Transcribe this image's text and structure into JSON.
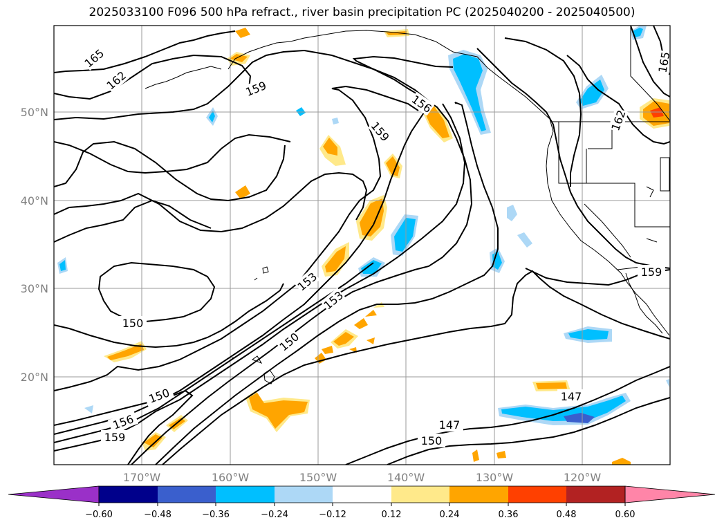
{
  "title": "2025033100 F096 500 hPa refract., river basin precipitation PC (2025040200 - 2025040500)",
  "map": {
    "lat_labels": [
      "50°N",
      "40°N",
      "30°N",
      "20°N"
    ],
    "lon_labels": [
      "170°W",
      "160°W",
      "150°W",
      "140°W",
      "130°W",
      "120°W"
    ],
    "contour_labels": [
      "165",
      "162",
      "159",
      "156",
      "159",
      "162",
      "165",
      "150",
      "153",
      "153",
      "150",
      "150",
      "156",
      "159",
      "147",
      "147",
      "150",
      "159"
    ]
  },
  "colorbar": {
    "ticks": [
      "−0.60",
      "−0.48",
      "−0.36",
      "−0.24",
      "−0.12",
      "0.12",
      "0.24",
      "0.36",
      "0.48",
      "0.60"
    ],
    "colors": [
      "#9a30c8",
      "#00008b",
      "#3a5fcd",
      "#00bfff",
      "#add8f6",
      "#ffffff",
      "#ffe98a",
      "#ffa500",
      "#ff4000",
      "#b22222",
      "#ff85a8"
    ]
  }
}
